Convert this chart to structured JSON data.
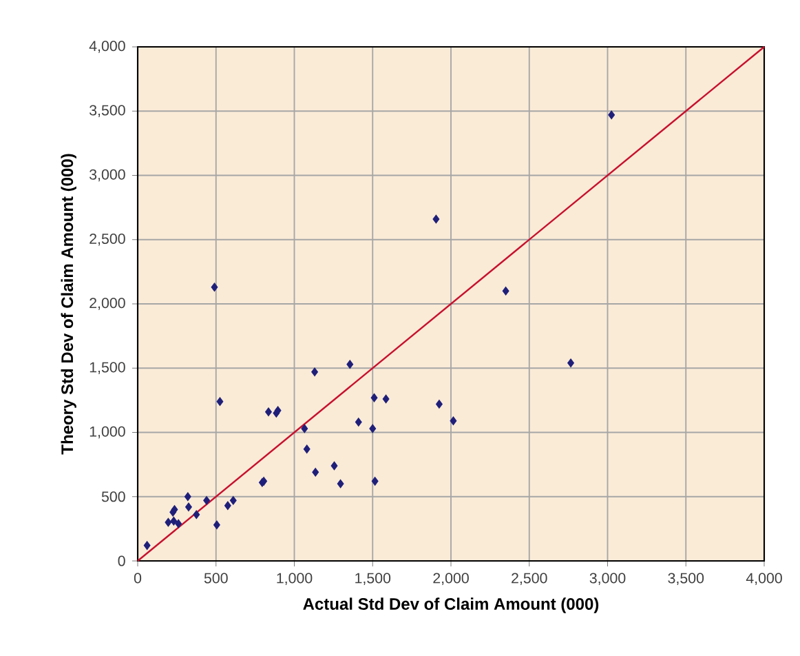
{
  "chart_data": {
    "type": "scatter",
    "xlabel": "Actual Std Dev of Claim Amount  (000)",
    "ylabel": "Theory Std Dev of Claim Amount  (000)",
    "xlim": [
      0,
      4000
    ],
    "ylim": [
      0,
      4000
    ],
    "xticks": [
      0,
      500,
      {
        "value": 1000,
        "label": "1,000"
      },
      {
        "value": 1500,
        "label": "1,500"
      },
      {
        "value": 2000,
        "label": "2,000"
      },
      {
        "value": 2500,
        "label": "2,500"
      },
      {
        "value": 3000,
        "label": "3,000"
      },
      {
        "value": 3500,
        "label": "3,500"
      },
      {
        "value": 4000,
        "label": "4,000"
      }
    ],
    "yticks": [
      0,
      500,
      {
        "value": 1000,
        "label": "1,000"
      },
      {
        "value": 1500,
        "label": "1,500"
      },
      {
        "value": 2000,
        "label": "2,000"
      },
      {
        "value": 2500,
        "label": "2,500"
      },
      {
        "value": 3000,
        "label": "3,000"
      },
      {
        "value": 3500,
        "label": "3,500"
      },
      {
        "value": 4000,
        "label": "4,000"
      }
    ],
    "grid": true,
    "series": [
      {
        "color": "#1f1f7a",
        "marker": "diamond",
        "x": [
          60,
          195,
          225,
          235,
          230,
          260,
          320,
          325,
          375,
          440,
          490,
          505,
          525,
          575,
          610,
          795,
          805,
          835,
          885,
          895,
          1065,
          1080,
          1130,
          1135,
          1255,
          1295,
          1355,
          1410,
          1500,
          1510,
          1515,
          1585,
          1905,
          1925,
          2015,
          2350,
          2765,
          3025
        ],
        "values": [
          120,
          300,
          380,
          400,
          310,
          290,
          500,
          420,
          360,
          470,
          2130,
          280,
          1240,
          430,
          470,
          610,
          620,
          1160,
          1150,
          1170,
          1030,
          870,
          1470,
          690,
          740,
          600,
          1530,
          1080,
          1030,
          1270,
          620,
          1260,
          2660,
          1220,
          1090,
          2100,
          1540,
          3470
        ]
      },
      {
        "type": "line",
        "color": "#c8102e",
        "x": [
          0,
          4000
        ],
        "values": [
          0,
          4000
        ]
      }
    ]
  }
}
